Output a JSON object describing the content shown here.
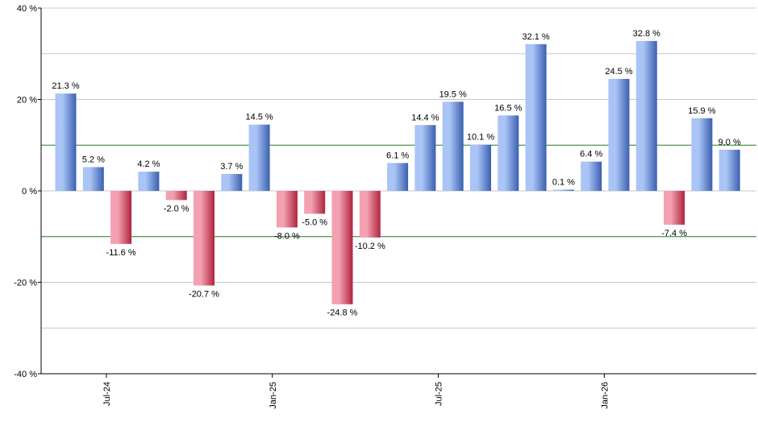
{
  "chart_data": {
    "type": "bar",
    "title": "",
    "xlabel": "",
    "ylabel": "",
    "ylim": [
      -40,
      40
    ],
    "y_ticks": [
      {
        "value": 40,
        "label": "40 %"
      },
      {
        "value": 20,
        "label": "20 %"
      },
      {
        "value": 0,
        "label": "0 %"
      },
      {
        "value": -20,
        "label": "-20 %"
      },
      {
        "value": -40,
        "label": "-40 %"
      }
    ],
    "y_gridlines": [
      30,
      20,
      10,
      0,
      -10,
      -20,
      -30
    ],
    "reference_lines": [
      10,
      -10
    ],
    "x_ticks": [
      {
        "index": 2,
        "label": "Jul-24"
      },
      {
        "index": 8,
        "label": "Jan-25"
      },
      {
        "index": 14,
        "label": "Jul-25"
      },
      {
        "index": 20,
        "label": "Jan-26"
      }
    ],
    "values": [
      21.3,
      5.2,
      -11.6,
      4.2,
      -2.0,
      -20.7,
      3.7,
      14.5,
      -8.0,
      -5.0,
      -24.8,
      -10.2,
      6.1,
      14.4,
      19.5,
      10.1,
      16.5,
      32.1,
      0.1,
      6.4,
      24.5,
      32.8,
      -7.4,
      15.9,
      9.0
    ],
    "labels": [
      "21.3 %",
      "5.2 %",
      "-11.6 %",
      "4.2 %",
      "-2.0 %",
      "-20.7 %",
      "3.7 %",
      "14.5 %",
      "-8.0 %",
      "-5.0 %",
      "-24.8 %",
      "-10.2 %",
      "6.1 %",
      "14.4 %",
      "19.5 %",
      "10.1 %",
      "16.5 %",
      "32.1 %",
      "0.1 %",
      "6.4 %",
      "24.5 %",
      "32.8 %",
      "-7.4 %",
      "15.9 %",
      "9.0 %"
    ],
    "grid": true,
    "colors": {
      "positive_light": "#a9c4f5",
      "positive_dark": "#3b5fb0",
      "negative_light": "#f3a0b0",
      "negative_dark": "#b0233f",
      "reference_line": "#2e8b2e",
      "gridline": "#c8c8c8",
      "axis": "#000000"
    }
  }
}
